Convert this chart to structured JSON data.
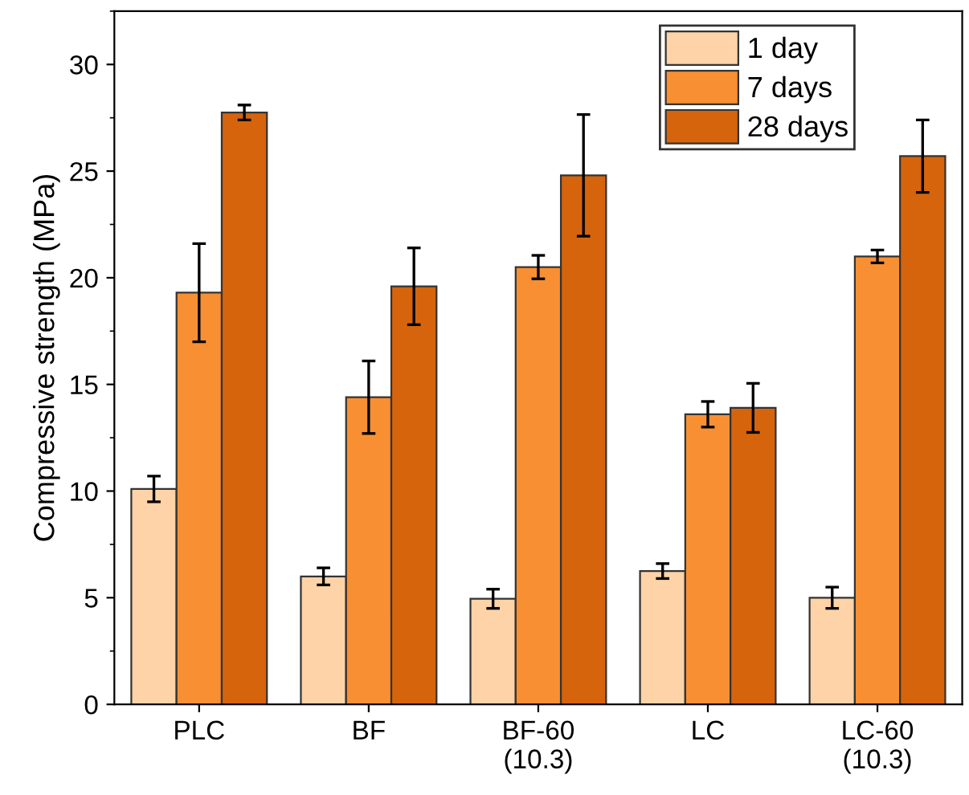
{
  "chart_data": {
    "type": "bar",
    "ylabel": "Compressive strength (MPa)",
    "categories": [
      "PLC",
      "BF",
      "BF-60\n(10.3)",
      "LC",
      "LC-60\n(10.3)"
    ],
    "series": [
      {
        "name": "1 day",
        "color": "#fdd3a7",
        "values": [
          10.1,
          6.0,
          4.95,
          6.25,
          5.0
        ],
        "errors": [
          0.6,
          0.4,
          0.45,
          0.35,
          0.5
        ]
      },
      {
        "name": "7 days",
        "color": "#f98f33",
        "values": [
          19.3,
          14.4,
          20.5,
          13.6,
          21.0
        ],
        "errors": [
          2.3,
          1.7,
          0.55,
          0.6,
          0.3
        ]
      },
      {
        "name": "28 days",
        "color": "#d5640c",
        "values": [
          27.75,
          19.6,
          24.8,
          13.9,
          25.7
        ],
        "errors": [
          0.35,
          1.8,
          2.85,
          1.15,
          1.7
        ]
      }
    ],
    "ylim": [
      0,
      32.5
    ],
    "yticks": [
      0,
      5,
      10,
      15,
      20,
      25,
      30
    ],
    "grid": false,
    "legend": "top right"
  }
}
